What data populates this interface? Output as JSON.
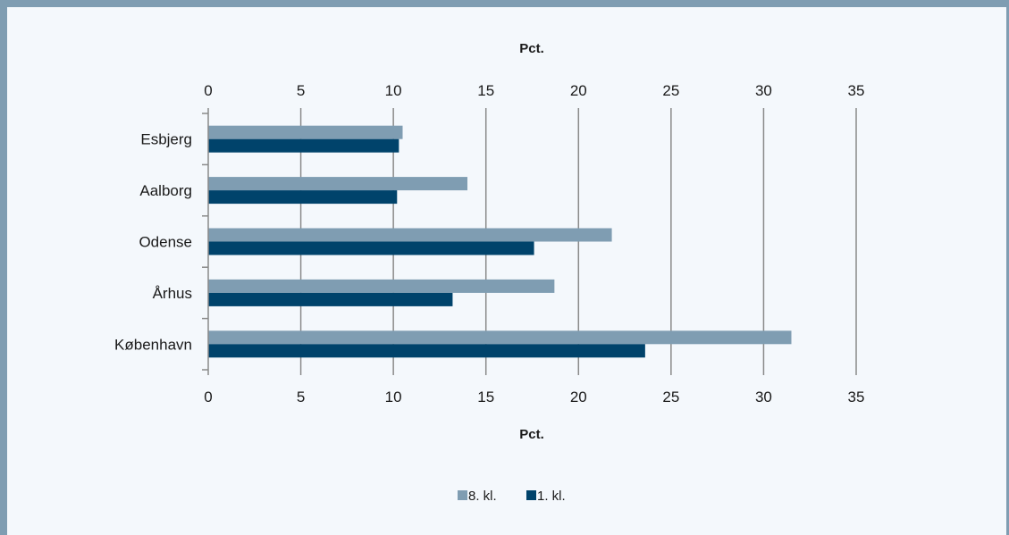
{
  "chart_data": {
    "type": "bar",
    "orientation": "horizontal",
    "categories": [
      "Esbjerg",
      "Aalborg",
      "Odense",
      "Århus",
      "København"
    ],
    "series": [
      {
        "name": "8. kl.",
        "color": "#7f9db2",
        "values": [
          10.5,
          14.0,
          21.8,
          18.7,
          31.5
        ]
      },
      {
        "name": "1. kl.",
        "color": "#00436b",
        "values": [
          10.3,
          10.2,
          17.6,
          13.2,
          23.6
        ]
      }
    ],
    "xlabel_top": "Pct.",
    "xlabel_bottom": "Pct.",
    "xlim": [
      0,
      35
    ],
    "xticks": [
      0,
      5,
      10,
      15,
      20,
      25,
      30,
      35
    ],
    "grid": true,
    "legend_position": "bottom-center"
  }
}
